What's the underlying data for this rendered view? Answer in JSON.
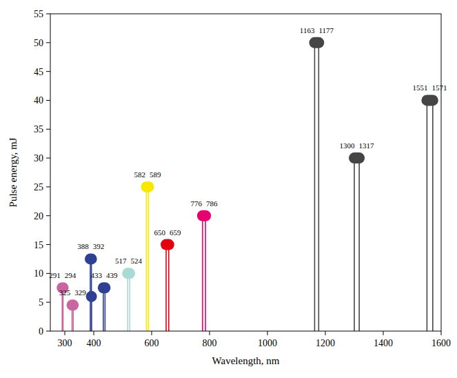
{
  "chart_data": {
    "type": "lollipop",
    "x_label": "Wavelength, nm",
    "y_label": "Pulse energy, mJ",
    "xlim": [
      250,
      1600
    ],
    "xticks": [
      300,
      400,
      600,
      800,
      1000,
      1200,
      1400,
      1600
    ],
    "ylim": [
      0,
      55
    ],
    "yticks": [
      0,
      5,
      10,
      15,
      20,
      25,
      30,
      35,
      40,
      45,
      50,
      55
    ],
    "data_labels": true,
    "series": [
      {
        "color": "#c9659f",
        "x": [
          291,
          294
        ],
        "values": [
          7.5,
          7.5
        ]
      },
      {
        "color": "#c9659f",
        "x": [
          325,
          329
        ],
        "values": [
          4.5,
          4.5
        ]
      },
      {
        "color": "#2f3f91",
        "x": [
          388,
          392
        ],
        "values": [
          12.5,
          12.5
        ]
      },
      {
        "color": "#2f3f91",
        "x": [
          392
        ],
        "values": [
          6
        ],
        "data_labels": false
      },
      {
        "color": "#2f3f91",
        "x": [
          433,
          439
        ],
        "values": [
          7.5,
          7.5
        ]
      },
      {
        "color": "#a9dad3",
        "x": [
          517,
          524
        ],
        "values": [
          10,
          10
        ]
      },
      {
        "color": "#f7e800",
        "x": [
          582,
          589
        ],
        "values": [
          25,
          25
        ]
      },
      {
        "color": "#e3000f",
        "x": [
          650,
          659
        ],
        "values": [
          15,
          15
        ]
      },
      {
        "color": "#e4006f",
        "x": [
          776,
          786
        ],
        "values": [
          20,
          20
        ]
      },
      {
        "color": "#454545",
        "x": [
          1163,
          1177
        ],
        "values": [
          50,
          50
        ]
      },
      {
        "color": "#454545",
        "x": [
          1300,
          1317
        ],
        "values": [
          30,
          30
        ]
      },
      {
        "color": "#454545",
        "x": [
          1551,
          1571
        ],
        "values": [
          40,
          40
        ]
      }
    ]
  }
}
